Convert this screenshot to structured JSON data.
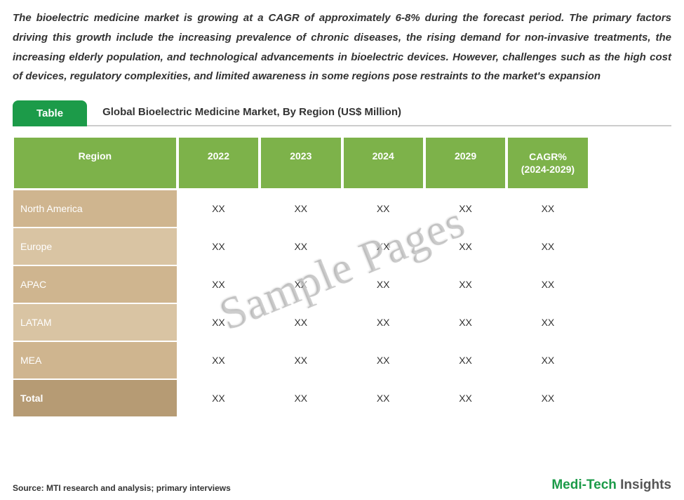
{
  "intro": "The bioelectric medicine market is growing at a CAGR of approximately 6-8% during the forecast period. The primary factors driving this growth include the increasing prevalence of chronic diseases, the rising demand for non-invasive treatments, the increasing elderly population, and technological advancements in bioelectric devices. However, challenges such as the high cost of devices, regulatory complexities, and limited awareness in some regions pose restraints to the market's expansion",
  "table_tab": "Table",
  "table_title": "Global Bioelectric Medicine Market, By Region (US$ Million)",
  "columns": {
    "region": "Region",
    "c1": "2022",
    "c2": "2023",
    "c3": "2024",
    "c4": "2029",
    "cagr_line1": "CAGR%",
    "cagr_line2": "(2024-2029)"
  },
  "rows": [
    {
      "region": "North America",
      "vals": [
        "XX",
        "XX",
        "XX",
        "XX",
        "XX"
      ],
      "bg": "#cfb58f"
    },
    {
      "region": "Europe",
      "vals": [
        "XX",
        "XX",
        "XX",
        "XX",
        "XX"
      ],
      "bg": "#d9c4a3"
    },
    {
      "region": "APAC",
      "vals": [
        "XX",
        "XX",
        "XX",
        "XX",
        "XX"
      ],
      "bg": "#cfb58f"
    },
    {
      "region": "LATAM",
      "vals": [
        "XX",
        "XX",
        "XX",
        "XX",
        "XX"
      ],
      "bg": "#d9c4a3"
    },
    {
      "region": "MEA",
      "vals": [
        "XX",
        "XX",
        "XX",
        "XX",
        "XX"
      ],
      "bg": "#cfb58f"
    },
    {
      "region": "Total",
      "vals": [
        "XX",
        "XX",
        "XX",
        "XX",
        "XX"
      ],
      "bg": "#b69b74",
      "bold": true
    }
  ],
  "watermark": "Sample Pages",
  "source": "Source: MTI research and analysis; primary interviews",
  "brand_main": "Medi-Tech",
  "brand_sub": " Insights",
  "colors": {
    "header_bg": "#7db24a",
    "tab_bg": "#1c9b49",
    "text": "#333333"
  }
}
